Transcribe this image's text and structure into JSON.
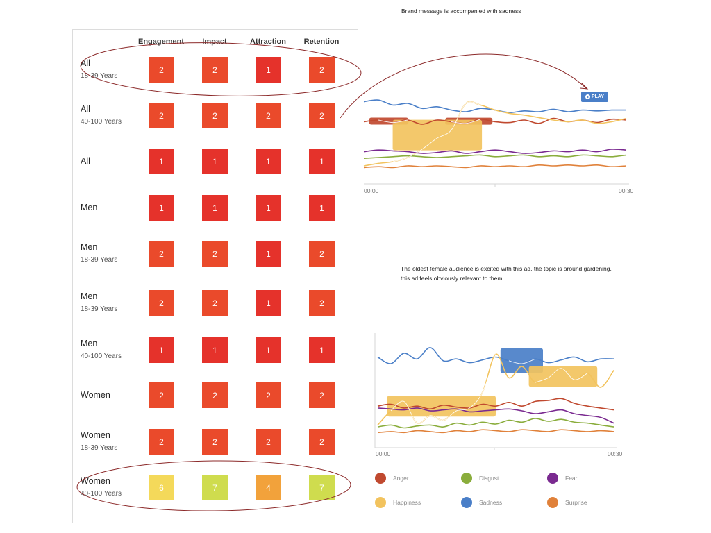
{
  "table": {
    "columns": [
      "Engagement",
      "Impact",
      "Attraction",
      "Retention"
    ],
    "rows": [
      {
        "segment": "All",
        "age": "18-39 Years",
        "values": [
          2,
          2,
          1,
          2
        ]
      },
      {
        "segment": "All",
        "age": "40-100 Years",
        "values": [
          2,
          2,
          2,
          2
        ]
      },
      {
        "segment": "All",
        "age": "",
        "values": [
          1,
          1,
          1,
          1
        ]
      },
      {
        "segment": "Men",
        "age": "",
        "values": [
          1,
          1,
          1,
          1
        ]
      },
      {
        "segment": "Men",
        "age": "18-39 Years",
        "values": [
          2,
          2,
          1,
          2
        ]
      },
      {
        "segment": "Men",
        "age": "18-39 Years",
        "values": [
          2,
          2,
          1,
          2
        ]
      },
      {
        "segment": "Men",
        "age": "40-100 Years",
        "values": [
          1,
          1,
          1,
          1
        ]
      },
      {
        "segment": "Women",
        "age": "",
        "values": [
          2,
          2,
          2,
          2
        ]
      },
      {
        "segment": "Women",
        "age": "18-39 Years",
        "values": [
          2,
          2,
          2,
          2
        ]
      },
      {
        "segment": "Women",
        "age": "40-100 Years",
        "values": [
          6,
          7,
          4,
          7
        ]
      }
    ]
  },
  "value_colors": {
    "1": "#e5322b",
    "2": "#ea4a2b",
    "4": "#f2a23b",
    "6": "#f4d95a",
    "7": "#cfdc4e"
  },
  "annotations": {
    "top": "Brand message is accompanied with sadness",
    "bottom": "The oldest female audience is excited with this ad, the topic is around gardening, this ad feels obviously relevant to them"
  },
  "play_button": {
    "label": "PLAY",
    "icon": "play-circle-icon"
  },
  "chart_data": [
    {
      "type": "line",
      "title": "",
      "x_ticks": [
        "00:00",
        "00:30"
      ],
      "series": [
        {
          "name": "Anger",
          "color": "#c0492f",
          "values": [
            0.58,
            0.6,
            0.57,
            0.6,
            0.55,
            0.6,
            0.58,
            0.56,
            0.61,
            0.58,
            0.57,
            0.6,
            0.56,
            0.62,
            0.58,
            0.6,
            0.57,
            0.61,
            0.6
          ]
        },
        {
          "name": "Sadness",
          "color": "#4a7fc8",
          "values": [
            0.82,
            0.84,
            0.78,
            0.8,
            0.74,
            0.76,
            0.72,
            0.7,
            0.74,
            0.72,
            0.69,
            0.71,
            0.7,
            0.73,
            0.7,
            0.72,
            0.71,
            0.72,
            0.72
          ]
        },
        {
          "name": "Happiness",
          "color": "#f2c35e",
          "values": [
            0.05,
            0.08,
            0.1,
            0.15,
            0.25,
            0.38,
            0.48,
            0.8,
            0.78,
            0.72,
            0.68,
            0.66,
            0.63,
            0.6,
            0.58,
            0.6,
            0.56,
            0.58,
            0.62
          ]
        },
        {
          "name": "Fear",
          "color": "#7a2a90",
          "values": [
            0.22,
            0.24,
            0.23,
            0.22,
            0.2,
            0.21,
            0.23,
            0.2,
            0.22,
            0.24,
            0.22,
            0.2,
            0.21,
            0.23,
            0.22,
            0.24,
            0.22,
            0.25,
            0.24
          ]
        },
        {
          "name": "Disgust",
          "color": "#8aad3c",
          "values": [
            0.14,
            0.15,
            0.16,
            0.17,
            0.16,
            0.15,
            0.16,
            0.17,
            0.18,
            0.16,
            0.17,
            0.18,
            0.16,
            0.17,
            0.16,
            0.18,
            0.17,
            0.16,
            0.18
          ]
        },
        {
          "name": "Surprise",
          "color": "#e0813a",
          "values": [
            0.03,
            0.04,
            0.03,
            0.05,
            0.04,
            0.05,
            0.04,
            0.03,
            0.05,
            0.04,
            0.05,
            0.04,
            0.06,
            0.05,
            0.06,
            0.05,
            0.06,
            0.04,
            0.05
          ]
        }
      ],
      "highlights": [
        {
          "series": "Anger",
          "from": 0.02,
          "to": 0.17
        },
        {
          "series": "Anger",
          "from": 0.31,
          "to": 0.49
        },
        {
          "series": "Happiness",
          "from": 0.11,
          "to": 0.45
        }
      ]
    },
    {
      "type": "line",
      "title": "",
      "x_ticks": [
        "00:00",
        "00:30"
      ],
      "series": [
        {
          "name": "Sadness",
          "color": "#4a7fc8",
          "values": [
            0.82,
            0.75,
            0.86,
            0.8,
            0.92,
            0.78,
            0.8,
            0.76,
            0.79,
            0.82,
            0.78,
            0.75,
            0.8,
            0.76,
            0.79,
            0.82,
            0.77,
            0.8,
            0.8
          ]
        },
        {
          "name": "Happiness",
          "color": "#f2c35e",
          "values": [
            0.1,
            0.25,
            0.35,
            0.12,
            0.2,
            0.15,
            0.25,
            0.28,
            0.45,
            0.85,
            0.6,
            0.72,
            0.55,
            0.6,
            0.7,
            0.58,
            0.65,
            0.5,
            0.68
          ]
        },
        {
          "name": "Anger",
          "color": "#c0492f",
          "values": [
            0.3,
            0.32,
            0.28,
            0.3,
            0.27,
            0.31,
            0.29,
            0.28,
            0.32,
            0.3,
            0.34,
            0.3,
            0.35,
            0.36,
            0.38,
            0.33,
            0.3,
            0.28,
            0.26
          ]
        },
        {
          "name": "Fear",
          "color": "#7a2a90",
          "values": [
            0.28,
            0.27,
            0.26,
            0.28,
            0.25,
            0.26,
            0.27,
            0.24,
            0.25,
            0.26,
            0.27,
            0.25,
            0.22,
            0.24,
            0.26,
            0.22,
            0.2,
            0.18,
            0.12
          ]
        },
        {
          "name": "Disgust",
          "color": "#8aad3c",
          "values": [
            0.08,
            0.1,
            0.07,
            0.09,
            0.1,
            0.08,
            0.12,
            0.1,
            0.13,
            0.11,
            0.15,
            0.13,
            0.17,
            0.14,
            0.16,
            0.13,
            0.12,
            0.1,
            0.08
          ]
        },
        {
          "name": "Surprise",
          "color": "#e0813a",
          "values": [
            0.02,
            0.03,
            0.02,
            0.04,
            0.03,
            0.02,
            0.04,
            0.03,
            0.05,
            0.04,
            0.03,
            0.05,
            0.04,
            0.03,
            0.05,
            0.04,
            0.03,
            0.04,
            0.03
          ]
        }
      ],
      "highlights": [
        {
          "series": "Happiness",
          "from": 0.04,
          "to": 0.5
        },
        {
          "series": "Sadness",
          "from": 0.52,
          "to": 0.7
        },
        {
          "series": "Happiness",
          "from": 0.64,
          "to": 0.93
        }
      ]
    }
  ],
  "legend": [
    {
      "label": "Anger",
      "color": "#c0492f"
    },
    {
      "label": "Disgust",
      "color": "#8aad3c"
    },
    {
      "label": "Fear",
      "color": "#7a2a90"
    },
    {
      "label": "Happiness",
      "color": "#f2c35e"
    },
    {
      "label": "Sadness",
      "color": "#4a7fc8"
    },
    {
      "label": "Surprise",
      "color": "#e0813a"
    }
  ]
}
